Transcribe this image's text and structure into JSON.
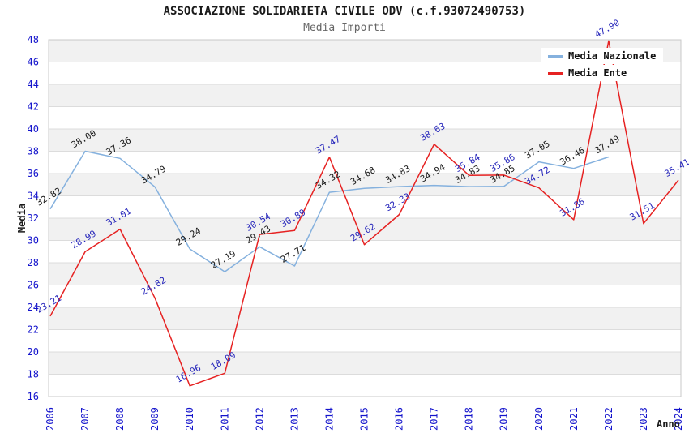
{
  "title": "ASSOCIAZIONE SOLIDARIETA CIVILE ODV (c.f.93072490753)",
  "subtitle": "Media Importi",
  "chart_data": {
    "type": "line",
    "title": "ASSOCIAZIONE SOLIDARIETA CIVILE ODV (c.f.93072490753)",
    "subtitle": "Media Importi",
    "xlabel": "Anno",
    "ylabel": "Media",
    "ylim": [
      16,
      48
    ],
    "ytick_step": 2,
    "grid": "horizontal-bands",
    "legend_position": "top-right",
    "categories": [
      2006,
      2007,
      2008,
      2009,
      2010,
      2011,
      2012,
      2013,
      2014,
      2015,
      2016,
      2017,
      2018,
      2019,
      2020,
      2021,
      2022,
      2023,
      2024
    ],
    "series": [
      {
        "name": "Media Nazionale",
        "color": "#85b1de",
        "label_color": "#1a1a1a",
        "values": [
          32.82,
          38.0,
          37.36,
          34.79,
          29.24,
          27.19,
          29.43,
          27.71,
          34.32,
          34.68,
          34.83,
          34.94,
          34.83,
          34.85,
          37.05,
          36.46,
          37.49,
          null,
          null
        ]
      },
      {
        "name": "Media Ente",
        "color": "#e62222",
        "label_color": "#2626bb",
        "values": [
          23.21,
          28.99,
          31.01,
          24.82,
          16.96,
          18.09,
          30.54,
          30.89,
          37.47,
          29.62,
          32.33,
          38.63,
          35.84,
          35.86,
          34.72,
          31.86,
          47.9,
          31.51,
          35.41
        ]
      }
    ],
    "colors": {
      "axis_tick_label": "#1414cc",
      "band_fill": "#f1f1f1",
      "band_line": "#dcdcdc",
      "plot_border": "#c8c8c8",
      "axis_title": "#1a1a1a"
    }
  }
}
